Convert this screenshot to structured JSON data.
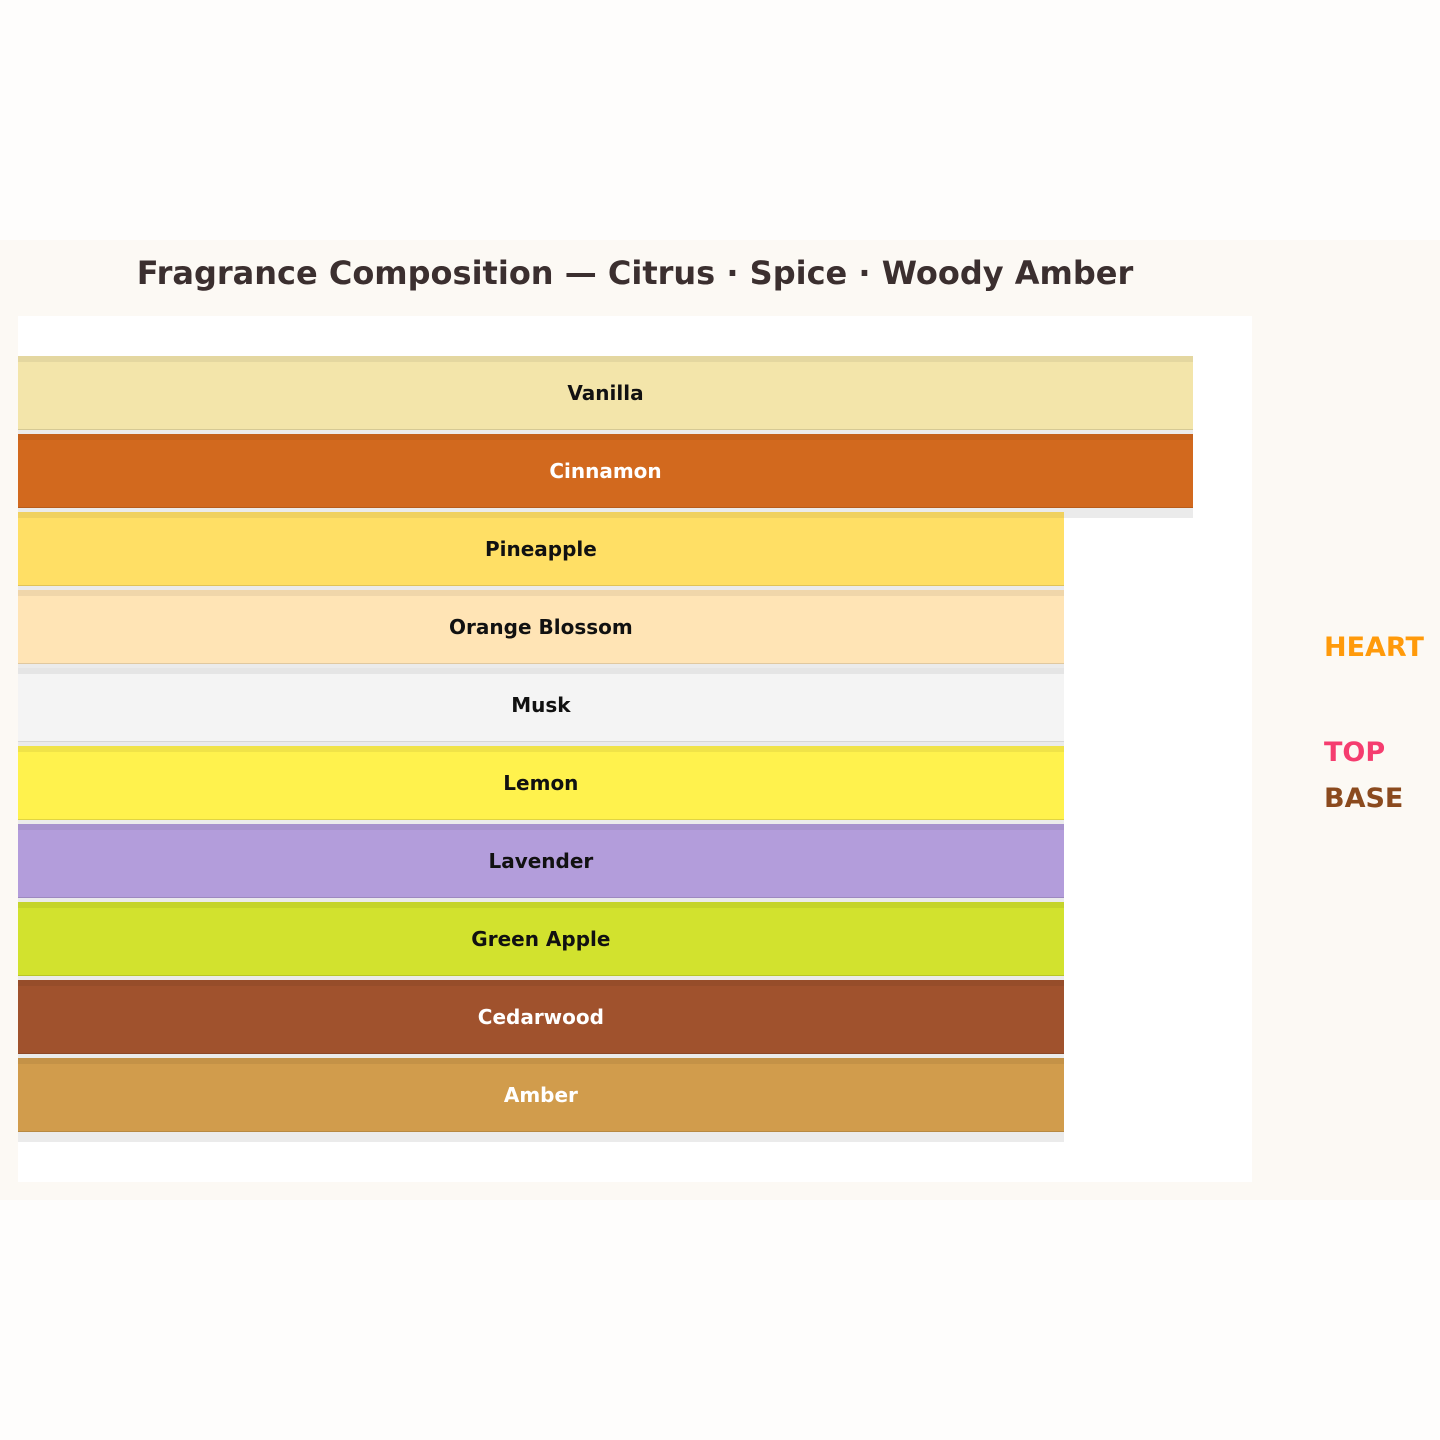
{
  "chart_data": {
    "type": "bar",
    "orientation": "horizontal",
    "title": "Fragrance Composition — Citrus · Spice · Woody Amber",
    "categories": [
      "Vanilla",
      "Cinnamon",
      "Pineapple",
      "Orange Blossom",
      "Musk",
      "Lemon",
      "Lavender",
      "Green Apple",
      "Cedarwood",
      "Amber"
    ],
    "values": [
      100,
      100,
      89,
      89,
      89,
      89,
      89,
      89,
      89,
      89
    ],
    "colors": [
      "#f3e5aa",
      "#d2691e",
      "#ffdf65",
      "#ffe4b5",
      "#f4f4f4",
      "#fff24d",
      "#b39ddb",
      "#d2e22e",
      "#a0522d",
      "#d19c4c"
    ],
    "label_colors": [
      "#111111",
      "#ffffff",
      "#111111",
      "#111111",
      "#111111",
      "#111111",
      "#111111",
      "#111111",
      "#ffffff",
      "#ffffff"
    ],
    "legend": [
      {
        "label": "HEART",
        "color": "#ff9a0a"
      },
      {
        "label": "TOP",
        "color": "#f53d6f"
      },
      {
        "label": "BASE",
        "color": "#8b4a1e"
      }
    ],
    "legend_placement": "right",
    "grid": false
  }
}
